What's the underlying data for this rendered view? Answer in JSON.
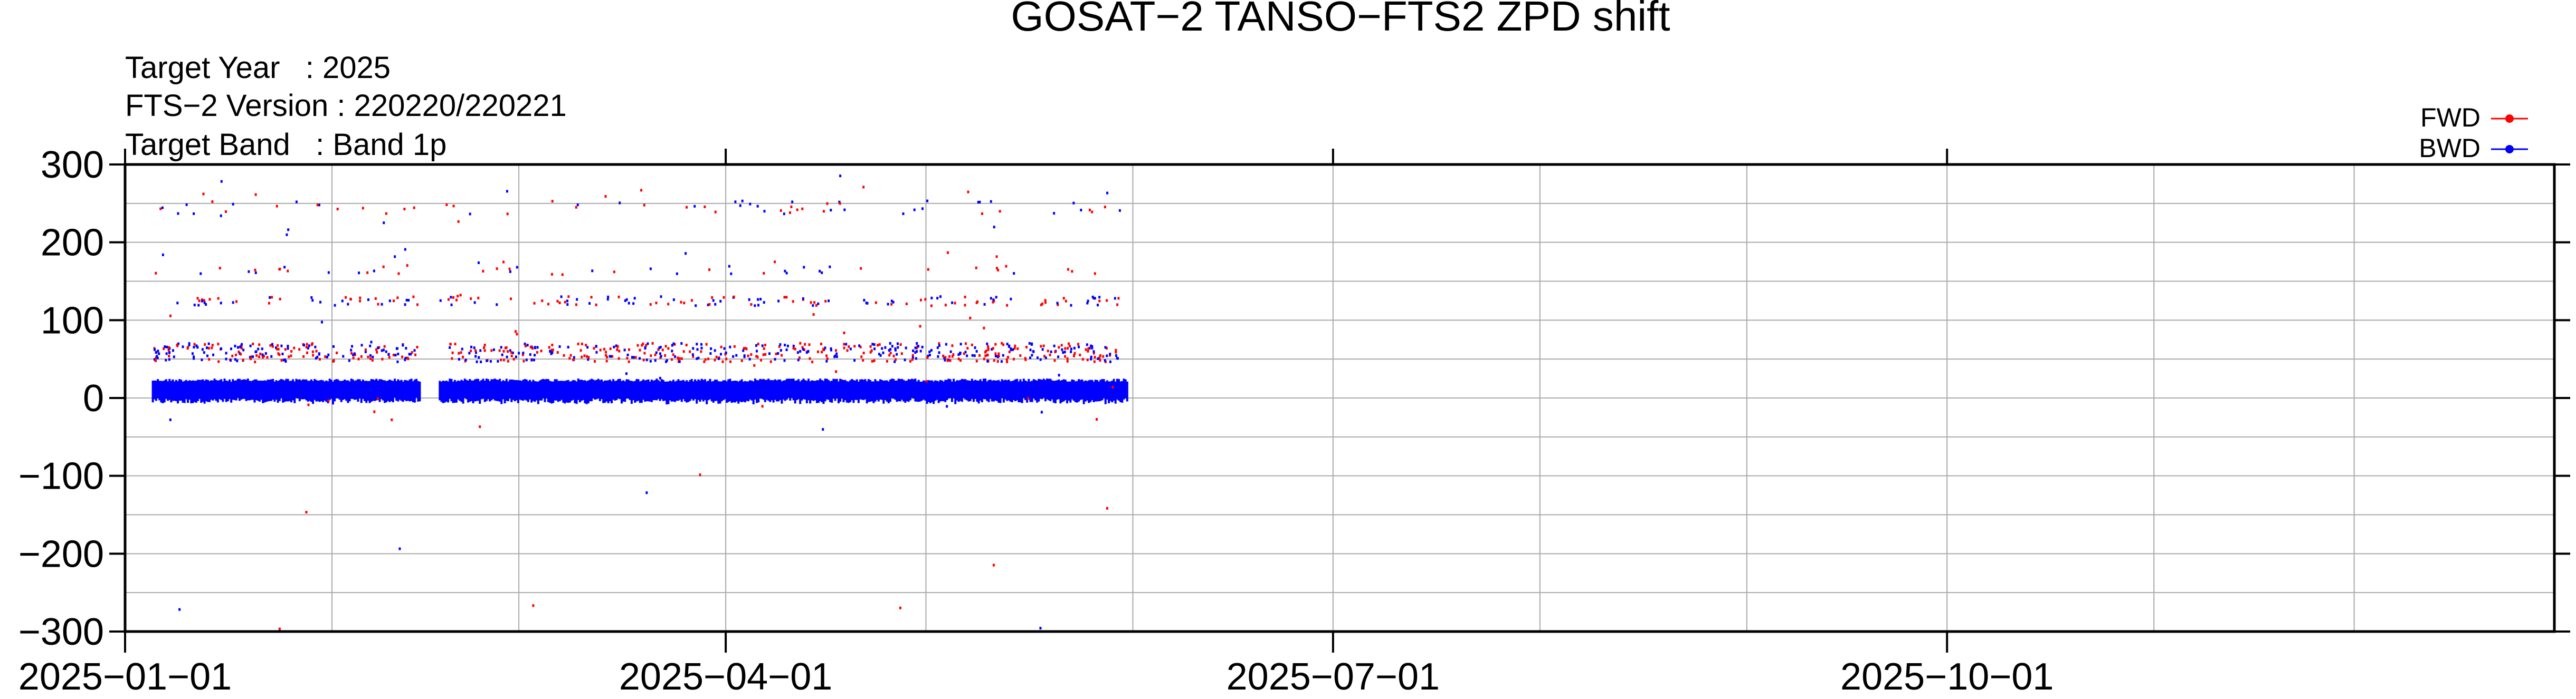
{
  "chart_data": {
    "type": "scatter",
    "title": "GOSAT−2 TANSO−FTS2 ZPD shift",
    "info_lines": [
      "Target Year   : 2025",
      "FTS−2 Version : 220220/220221",
      "Target Band   : Band 1p"
    ],
    "xlabel": "",
    "ylabel": "",
    "xlim": [
      "2025-01-01",
      "2025-12-31"
    ],
    "ylim": [
      -300,
      300
    ],
    "y_ticks": [
      300,
      200,
      100,
      0,
      -100,
      -200,
      -300
    ],
    "y_tick_labels": [
      "300",
      "200",
      "100",
      "0",
      "−100",
      "−200",
      "−300"
    ],
    "x_tick_dates": [
      "2025-01-01",
      "2025-04-01",
      "2025-07-01",
      "2025-10-01"
    ],
    "x_tick_labels": [
      "2025−01−01",
      "2025−04−01",
      "2025−07−01",
      "2025−10−01"
    ],
    "x_minor_dates": [
      "2025-02-01",
      "2025-03-01",
      "2025-05-01",
      "2025-06-01",
      "2025-08-01",
      "2025-09-01",
      "2025-11-01",
      "2025-12-01"
    ],
    "y_grid": [
      -300,
      -250,
      -200,
      -150,
      -100,
      -50,
      0,
      50,
      100,
      150,
      200,
      250,
      300
    ],
    "grid": true,
    "legend_position": "top-right",
    "series": [
      {
        "name": "FWD",
        "color": "#ff0000"
      },
      {
        "name": "BWD",
        "color": "#0000ff"
      }
    ],
    "data_date_range": [
      "2025-01-05",
      "2025-05-30"
    ],
    "data_gap": [
      "2025-02-14",
      "2025-02-17"
    ],
    "clusters": [
      {
        "label": "main",
        "y_min": -10,
        "y_max": 25
      },
      {
        "label": "band-60",
        "y_min": 48,
        "y_max": 72
      },
      {
        "label": "band-125",
        "y_min": 120,
        "y_max": 132
      },
      {
        "label": "band-165",
        "y_min": 160,
        "y_max": 172
      },
      {
        "label": "band-245",
        "y_min": 238,
        "y_max": 255
      }
    ],
    "sample_outliers": [
      {
        "x": "2025-01-28",
        "y": -145,
        "series": "FWD"
      },
      {
        "x": "2025-02-11",
        "y": -192,
        "series": "BWD"
      },
      {
        "x": "2025-01-24",
        "y": -295,
        "series": "FWD"
      },
      {
        "x": "2025-01-09",
        "y": -270,
        "series": "BWD"
      },
      {
        "x": "2025-03-03",
        "y": -265,
        "series": "FWD"
      },
      {
        "x": "2025-03-20",
        "y": -120,
        "series": "BWD"
      },
      {
        "x": "2025-03-28",
        "y": -97,
        "series": "FWD"
      },
      {
        "x": "2025-04-27",
        "y": -268,
        "series": "FWD"
      },
      {
        "x": "2025-05-18",
        "y": -294,
        "series": "BWD"
      },
      {
        "x": "2025-05-28",
        "y": -140,
        "series": "FWD"
      },
      {
        "x": "2025-05-11",
        "y": -213,
        "series": "FWD"
      },
      {
        "x": "2025-04-18",
        "y": 287,
        "series": "BWD"
      }
    ]
  }
}
